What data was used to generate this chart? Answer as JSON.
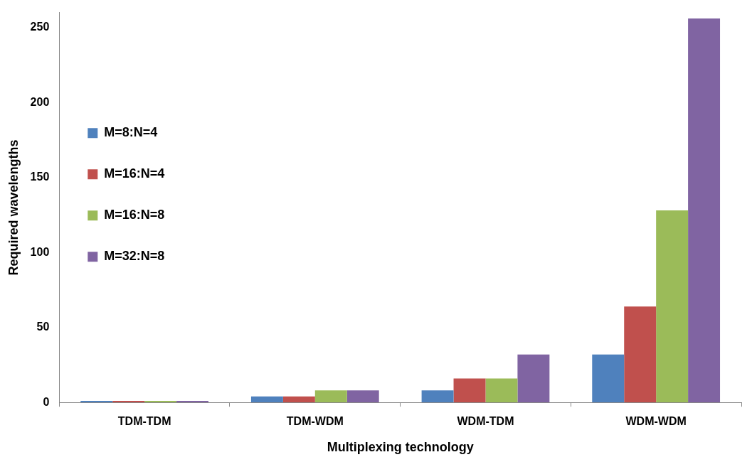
{
  "chart_data": {
    "type": "bar",
    "xlabel": "Multiplexing technology",
    "ylabel": "Required wavelengths",
    "categories": [
      "TDM-TDM",
      "TDM-WDM",
      "WDM-TDM",
      "WDM-WDM"
    ],
    "series": [
      {
        "name": "M=8:N=4",
        "color": "#4f81bd",
        "values": [
          1,
          4,
          8,
          32
        ]
      },
      {
        "name": "M=16:N=4",
        "color": "#c0504d",
        "values": [
          1,
          4,
          16,
          64
        ]
      },
      {
        "name": "M=16:N=8",
        "color": "#9bbb59",
        "values": [
          1,
          8,
          16,
          128
        ]
      },
      {
        "name": "M=32:N=8",
        "color": "#8064a2",
        "values": [
          1,
          8,
          32,
          256
        ]
      }
    ],
    "ylim": [
      0,
      260
    ],
    "yticks": [
      0,
      50,
      100,
      150,
      200,
      250
    ],
    "grid": false,
    "legend": "top"
  }
}
